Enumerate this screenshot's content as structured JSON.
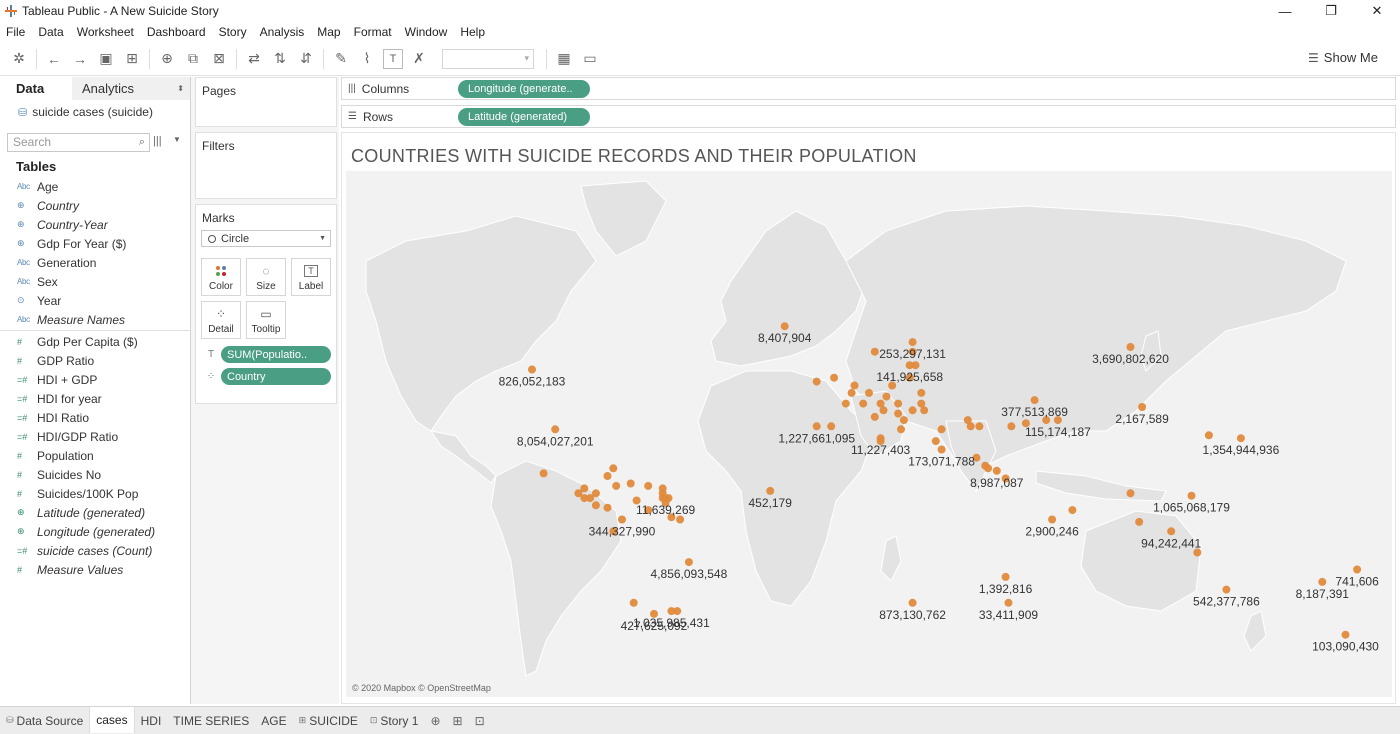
{
  "window": {
    "title": "Tableau Public - A New Suicide Story",
    "controls": {
      "minimize": "—",
      "restore": "❐",
      "close": "✕"
    }
  },
  "menu": [
    "File",
    "Data",
    "Worksheet",
    "Dashboard",
    "Story",
    "Analysis",
    "Map",
    "Format",
    "Window",
    "Help"
  ],
  "toolbar": {
    "show_me_label": "Show Me"
  },
  "data_pane": {
    "tabs": {
      "data": "Data",
      "analytics": "Analytics"
    },
    "datasource": "suicide cases (suicide)",
    "search_placeholder": "Search",
    "tables_header": "Tables",
    "dimensions": [
      {
        "icon": "Abc",
        "name": "Age"
      },
      {
        "icon": "globe",
        "name": "Country"
      },
      {
        "icon": "globe",
        "name": "Country-Year"
      },
      {
        "icon": "globe",
        "name": "Gdp For Year ($)"
      },
      {
        "icon": "Abc",
        "name": "Generation"
      },
      {
        "icon": "Abc",
        "name": "Sex"
      },
      {
        "icon": "link",
        "name": "Year"
      },
      {
        "icon": "Abc",
        "name": "Measure Names"
      }
    ],
    "measures": [
      {
        "icon": "#",
        "name": "Gdp Per Capita ($)"
      },
      {
        "icon": "#",
        "name": "GDP Ratio"
      },
      {
        "icon": "=#",
        "name": "HDI + GDP"
      },
      {
        "icon": "=#",
        "name": "HDI for year"
      },
      {
        "icon": "=#",
        "name": "HDI Ratio"
      },
      {
        "icon": "=#",
        "name": "HDI/GDP Ratio"
      },
      {
        "icon": "#",
        "name": "Population"
      },
      {
        "icon": "#",
        "name": "Suicides No"
      },
      {
        "icon": "#",
        "name": "Suicides/100K Pop"
      },
      {
        "icon": "globe",
        "name": "Latitude (generated)"
      },
      {
        "icon": "globe",
        "name": "Longitude (generated)"
      },
      {
        "icon": "=#",
        "name": "suicide cases (Count)"
      },
      {
        "icon": "#",
        "name": "Measure Values"
      }
    ]
  },
  "cards": {
    "pages": "Pages",
    "filters": "Filters",
    "marks": "Marks",
    "mark_type": "Circle",
    "mark_buttons": {
      "color": "Color",
      "size": "Size",
      "label": "Label",
      "detail": "Detail",
      "tooltip": "Tooltip"
    },
    "pills": {
      "label_pill": "SUM(Populatio..",
      "detail_pill": "Country"
    }
  },
  "shelves": {
    "columns_label": "Columns",
    "columns_pill": "Longitude (generate..",
    "rows_label": "Rows",
    "rows_pill": "Latitude (generated)"
  },
  "view": {
    "title": "COUNTRIES WITH SUICIDE RECORDS AND THEIR POPULATION",
    "attribution": "© 2020 Mapbox © OpenStreetMap",
    "accent_color": "#e08a3c",
    "map_labels": [
      {
        "text": "826,052,183",
        "lon": -106,
        "lat": 56
      },
      {
        "text": "8,407,904",
        "lon": -19,
        "lat": 65
      },
      {
        "text": "253,297,131",
        "lon": 25,
        "lat": 62
      },
      {
        "text": "141,925,658",
        "lon": 24,
        "lat": 57
      },
      {
        "text": "3,690,802,620",
        "lon": 100,
        "lat": 61
      },
      {
        "text": "8,054,027,201",
        "lon": -98,
        "lat": 39
      },
      {
        "text": "1,227,661,095",
        "lon": -8,
        "lat": 40
      },
      {
        "text": "11,227,403",
        "lon": 14,
        "lat": 36
      },
      {
        "text": "377,513,869",
        "lon": 67,
        "lat": 48
      },
      {
        "text": "2,167,589",
        "lon": 104,
        "lat": 46
      },
      {
        "text": "115,174,187",
        "lon": 75,
        "lat": 42
      },
      {
        "text": "1,354,944,936",
        "lon": 138,
        "lat": 36
      },
      {
        "text": "173,071,788",
        "lon": 35,
        "lat": 32
      },
      {
        "text": "8,987,087",
        "lon": 54,
        "lat": 24
      },
      {
        "text": "452,179",
        "lon": -24,
        "lat": 16
      },
      {
        "text": "1,065,068,179",
        "lon": 121,
        "lat": 14
      },
      {
        "text": "11,639,269",
        "lon": -60,
        "lat": 13
      },
      {
        "text": "344,327,990",
        "lon": -75,
        "lat": 4
      },
      {
        "text": "2,900,246",
        "lon": 73,
        "lat": 4
      },
      {
        "text": "94,242,441",
        "lon": 114,
        "lat": -1
      },
      {
        "text": "741,606",
        "lon": 178,
        "lat": -17
      },
      {
        "text": "1,392,816",
        "lon": 57,
        "lat": -20
      },
      {
        "text": "4,856,093,548",
        "lon": -52,
        "lat": -14
      },
      {
        "text": "427,625,092",
        "lon": -64,
        "lat": -34
      },
      {
        "text": "8,187,391",
        "lon": 166,
        "lat": -22
      },
      {
        "text": "33,411,909",
        "lon": 58,
        "lat": -30
      },
      {
        "text": "542,377,786",
        "lon": 133,
        "lat": -25
      },
      {
        "text": "873,130,762",
        "lon": 25,
        "lat": -30
      },
      {
        "text": "1,035,985,431",
        "lon": -58,
        "lat": -33
      },
      {
        "text": "103,090,430",
        "lon": 174,
        "lat": -41
      }
    ],
    "extra_points": [
      {
        "lon": 12,
        "lat": 60
      },
      {
        "lon": 25,
        "lat": 60
      },
      {
        "lon": 18,
        "lat": 52
      },
      {
        "lon": 10,
        "lat": 50
      },
      {
        "lon": 5,
        "lat": 52
      },
      {
        "lon": 4,
        "lat": 50
      },
      {
        "lon": 2,
        "lat": 47
      },
      {
        "lon": 8,
        "lat": 47
      },
      {
        "lon": 14,
        "lat": 47
      },
      {
        "lon": 16,
        "lat": 49
      },
      {
        "lon": 20,
        "lat": 47
      },
      {
        "lon": 25,
        "lat": 45
      },
      {
        "lon": 20,
        "lat": 44
      },
      {
        "lon": 15,
        "lat": 45
      },
      {
        "lon": 12,
        "lat": 43
      },
      {
        "lon": 22,
        "lat": 42
      },
      {
        "lon": 24,
        "lat": 54
      },
      {
        "lon": 28,
        "lat": 50
      },
      {
        "lon": 26,
        "lat": 57
      },
      {
        "lon": -8,
        "lat": 53
      },
      {
        "lon": -2,
        "lat": 54
      },
      {
        "lon": -3,
        "lat": 40
      },
      {
        "lon": 21,
        "lat": 39
      },
      {
        "lon": 28,
        "lat": 47
      },
      {
        "lon": 45,
        "lat": 40
      },
      {
        "lon": 44,
        "lat": 42
      },
      {
        "lon": 48,
        "lat": 40
      },
      {
        "lon": 59,
        "lat": 40
      },
      {
        "lon": 33,
        "lat": 35
      },
      {
        "lon": 35,
        "lat": 39
      },
      {
        "lon": 50,
        "lat": 26
      },
      {
        "lon": 51,
        "lat": 25
      },
      {
        "lon": 47,
        "lat": 29
      },
      {
        "lon": 57,
        "lat": 21
      },
      {
        "lon": 29,
        "lat": 45
      },
      {
        "lon": 14,
        "lat": 35
      },
      {
        "lon": -102,
        "lat": 23
      },
      {
        "lon": -90,
        "lat": 15
      },
      {
        "lon": -86,
        "lat": 13
      },
      {
        "lon": -84,
        "lat": 10
      },
      {
        "lon": -88,
        "lat": 13
      },
      {
        "lon": -80,
        "lat": 9
      },
      {
        "lon": -80,
        "lat": 22
      },
      {
        "lon": -77,
        "lat": 18
      },
      {
        "lon": -72,
        "lat": 19
      },
      {
        "lon": -66,
        "lat": 18
      },
      {
        "lon": -61,
        "lat": 17
      },
      {
        "lon": -61,
        "lat": 15
      },
      {
        "lon": -61,
        "lat": 13
      },
      {
        "lon": -60,
        "lat": 11
      },
      {
        "lon": -59,
        "lat": 13
      },
      {
        "lon": -78,
        "lat": 25
      },
      {
        "lon": -88,
        "lat": 17
      },
      {
        "lon": -84,
        "lat": 15
      },
      {
        "lon": -66,
        "lat": 8
      },
      {
        "lon": -70,
        "lat": 12
      },
      {
        "lon": -58,
        "lat": 5
      },
      {
        "lon": -55,
        "lat": 4
      },
      {
        "lon": -78,
        "lat": -1
      },
      {
        "lon": -56,
        "lat": -33
      },
      {
        "lon": -71,
        "lat": -30
      },
      {
        "lon": 127,
        "lat": 37
      },
      {
        "lon": 100,
        "lat": 15
      },
      {
        "lon": 103,
        "lat": 3
      },
      {
        "lon": 80,
        "lat": 8
      },
      {
        "lon": 123,
        "lat": -10
      },
      {
        "lon": 71,
        "lat": 42
      },
      {
        "lon": 64,
        "lat": 41
      }
    ]
  }
}
